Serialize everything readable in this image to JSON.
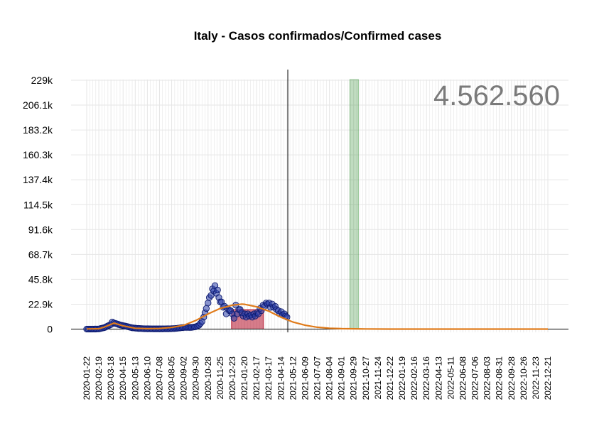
{
  "chart_data": {
    "type": "scatter",
    "title": "Italy - Casos confirmados/Confirmed cases",
    "total_label": "4.562.560",
    "y_ticks": [
      {
        "value": 0,
        "label": "0"
      },
      {
        "value": 22900,
        "label": "22.9k"
      },
      {
        "value": 45800,
        "label": "45.8k"
      },
      {
        "value": 68700,
        "label": "68.7k"
      },
      {
        "value": 91600,
        "label": "91.6k"
      },
      {
        "value": 114500,
        "label": "114.5k"
      },
      {
        "value": 137400,
        "label": "137.4k"
      },
      {
        "value": 160300,
        "label": "160.3k"
      },
      {
        "value": 183200,
        "label": "183.2k"
      },
      {
        "value": 206100,
        "label": "206.1k"
      },
      {
        "value": 229000,
        "label": "229k"
      }
    ],
    "x_tick_labels": [
      "2020-01-22",
      "2020-02-19",
      "2020-03-18",
      "2020-04-15",
      "2020-05-13",
      "2020-06-10",
      "2020-07-08",
      "2020-08-05",
      "2020-09-02",
      "2020-09-30",
      "2020-10-28",
      "2020-11-25",
      "2020-12-23",
      "2021-01-20",
      "2021-02-17",
      "2021-03-17",
      "2021-04-14",
      "2021-05-12",
      "2021-06-09",
      "2021-07-07",
      "2021-08-04",
      "2021-09-01",
      "2021-09-29",
      "2021-10-27",
      "2021-11-24",
      "2021-12-22",
      "2022-01-19",
      "2022-02-16",
      "2022-03-16",
      "2022-04-13",
      "2022-05-11",
      "2022-06-08",
      "2022-07-06",
      "2022-08-03",
      "2022-08-31",
      "2022-09-28",
      "2022-10-26",
      "2022-11-23",
      "2022-12-21"
    ],
    "ylim": [
      -3000,
      229000
    ],
    "grid": true,
    "today_line": "2021-04-30",
    "red_band": {
      "start": "2020-12-21",
      "end": "2021-03-05",
      "ymax": 18000
    },
    "green_band": {
      "start": "2021-09-20",
      "end": "2021-10-10"
    },
    "daily_cases": [
      [
        "2020-01-22",
        0
      ],
      [
        "2020-02-05",
        0
      ],
      [
        "2020-02-19",
        100
      ],
      [
        "2020-02-26",
        800
      ],
      [
        "2020-03-04",
        1500
      ],
      [
        "2020-03-11",
        3000
      ],
      [
        "2020-03-18",
        4200
      ],
      [
        "2020-03-21",
        6500
      ],
      [
        "2020-03-25",
        5600
      ],
      [
        "2020-04-01",
        4800
      ],
      [
        "2020-04-08",
        3800
      ],
      [
        "2020-04-15",
        3200
      ],
      [
        "2020-04-22",
        2600
      ],
      [
        "2020-04-29",
        1900
      ],
      [
        "2020-05-06",
        1200
      ],
      [
        "2020-05-13",
        900
      ],
      [
        "2020-05-20",
        600
      ],
      [
        "2020-05-27",
        500
      ],
      [
        "2020-06-03",
        350
      ],
      [
        "2020-06-10",
        300
      ],
      [
        "2020-06-17",
        250
      ],
      [
        "2020-06-24",
        200
      ],
      [
        "2020-07-01",
        200
      ],
      [
        "2020-07-08",
        200
      ],
      [
        "2020-07-15",
        220
      ],
      [
        "2020-07-22",
        250
      ],
      [
        "2020-07-29",
        300
      ],
      [
        "2020-08-05",
        400
      ],
      [
        "2020-08-12",
        500
      ],
      [
        "2020-08-19",
        800
      ],
      [
        "2020-08-26",
        1200
      ],
      [
        "2020-09-02",
        1500
      ],
      [
        "2020-09-09",
        1600
      ],
      [
        "2020-09-16",
        1500
      ],
      [
        "2020-09-23",
        1700
      ],
      [
        "2020-09-30",
        2200
      ],
      [
        "2020-10-07",
        3500
      ],
      [
        "2020-10-14",
        7000
      ],
      [
        "2020-10-18",
        11000
      ],
      [
        "2020-10-21",
        15000
      ],
      [
        "2020-10-24",
        19000
      ],
      [
        "2020-10-28",
        24000
      ],
      [
        "2020-10-31",
        29000
      ],
      [
        "2020-11-04",
        31000
      ],
      [
        "2020-11-07",
        37000
      ],
      [
        "2020-11-10",
        35000
      ],
      [
        "2020-11-13",
        40000
      ],
      [
        "2020-11-16",
        33000
      ],
      [
        "2020-11-19",
        36000
      ],
      [
        "2020-11-22",
        29000
      ],
      [
        "2020-11-25",
        25000
      ],
      [
        "2020-11-28",
        25000
      ],
      [
        "2020-12-02",
        20000
      ],
      [
        "2020-12-05",
        21000
      ],
      [
        "2020-12-09",
        14000
      ],
      [
        "2020-12-12",
        19000
      ],
      [
        "2020-12-16",
        17000
      ],
      [
        "2020-12-19",
        17000
      ],
      [
        "2020-12-23",
        14000
      ],
      [
        "2020-12-27",
        10000
      ],
      [
        "2020-12-31",
        22000
      ],
      [
        "2021-01-03",
        14000
      ],
      [
        "2021-01-07",
        18000
      ],
      [
        "2021-01-10",
        18000
      ],
      [
        "2021-01-14",
        15000
      ],
      [
        "2021-01-17",
        12000
      ],
      [
        "2021-01-21",
        14000
      ],
      [
        "2021-01-24",
        11000
      ],
      [
        "2021-01-28",
        14000
      ],
      [
        "2021-01-31",
        12000
      ],
      [
        "2021-02-04",
        13000
      ],
      [
        "2021-02-07",
        11000
      ],
      [
        "2021-02-11",
        14000
      ],
      [
        "2021-02-14",
        12000
      ],
      [
        "2021-02-18",
        15000
      ],
      [
        "2021-02-21",
        14000
      ],
      [
        "2021-02-25",
        19000
      ],
      [
        "2021-02-28",
        17000
      ],
      [
        "2021-03-04",
        22000
      ],
      [
        "2021-03-07",
        21000
      ],
      [
        "2021-03-11",
        24000
      ],
      [
        "2021-03-14",
        23000
      ],
      [
        "2021-03-18",
        24000
      ],
      [
        "2021-03-21",
        20000
      ],
      [
        "2021-03-25",
        23000
      ],
      [
        "2021-03-28",
        20000
      ],
      [
        "2021-04-01",
        21000
      ],
      [
        "2021-04-04",
        18000
      ],
      [
        "2021-04-08",
        17000
      ],
      [
        "2021-04-11",
        14000
      ],
      [
        "2021-04-15",
        16000
      ],
      [
        "2021-04-18",
        13000
      ],
      [
        "2021-04-22",
        14000
      ],
      [
        "2021-04-25",
        12000
      ],
      [
        "2021-04-28",
        11000
      ]
    ],
    "fit_curve": [
      [
        "2020-01-22",
        100
      ],
      [
        "2020-02-19",
        300
      ],
      [
        "2020-03-04",
        2000
      ],
      [
        "2020-03-25",
        5500
      ],
      [
        "2020-04-15",
        3000
      ],
      [
        "2020-05-13",
        800
      ],
      [
        "2020-06-10",
        400
      ],
      [
        "2020-07-08",
        600
      ],
      [
        "2020-08-05",
        1500
      ],
      [
        "2020-09-02",
        3500
      ],
      [
        "2020-09-30",
        8000
      ],
      [
        "2020-10-28",
        14000
      ],
      [
        "2020-11-25",
        19000
      ],
      [
        "2020-12-23",
        22000
      ],
      [
        "2021-01-14",
        23000
      ],
      [
        "2021-01-20",
        22800
      ],
      [
        "2021-02-17",
        20500
      ],
      [
        "2021-03-17",
        16500
      ],
      [
        "2021-04-14",
        11000
      ],
      [
        "2021-05-12",
        6500
      ],
      [
        "2021-06-09",
        3500
      ],
      [
        "2021-07-07",
        1700
      ],
      [
        "2021-08-04",
        800
      ],
      [
        "2021-09-01",
        400
      ],
      [
        "2021-10-27",
        100
      ],
      [
        "2021-12-22",
        30
      ],
      [
        "2022-12-21",
        0
      ]
    ],
    "colors": {
      "points_fill": "#2b3faa",
      "points_stroke": "#0d1a6e",
      "fit_curve": "#e07b1a",
      "red_band": "#b5102a",
      "green_band": "#2e8b2e",
      "grid": "#e6e6e6",
      "total_text": "#7a7a7a"
    }
  }
}
